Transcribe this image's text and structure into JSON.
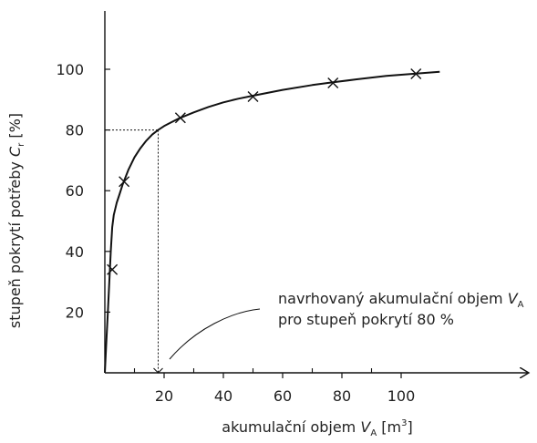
{
  "chart_data": {
    "type": "line",
    "title": "",
    "xlabel": {
      "text": "akumulační objem ",
      "var": "V",
      "sub": "A",
      "unit": " [m",
      "sup": "3",
      "close": "]"
    },
    "ylabel": {
      "text": "stupeň pokrytí potřeby ",
      "var": "C",
      "sub": "r",
      "unit": " [%]"
    },
    "xlim": [
      0,
      115
    ],
    "ylim": [
      0,
      118
    ],
    "x_ticks": [
      20,
      40,
      60,
      80,
      100
    ],
    "x_minor_ticks": [
      10,
      30,
      50,
      70,
      90
    ],
    "y_ticks": [
      20,
      40,
      60,
      80,
      100
    ],
    "grid": false,
    "series": [
      {
        "curve_x": [
          0,
          0.5,
          1,
          1.5,
          2,
          2.5,
          3,
          3.5,
          4,
          5,
          6,
          8,
          10,
          12,
          14,
          16,
          18,
          20,
          22,
          25,
          30,
          35,
          40,
          45,
          50,
          60,
          70,
          77,
          85,
          95,
          105,
          113
        ],
        "curve_y": [
          0,
          10,
          20,
          30,
          40,
          48,
          52,
          54,
          56,
          59,
          62,
          67,
          71,
          74,
          76.5,
          78.5,
          80,
          81.3,
          82.3,
          83.8,
          85.8,
          87.6,
          89.1,
          90.3,
          91.3,
          93.2,
          94.8,
          95.7,
          96.7,
          97.8,
          98.6,
          99.2
        ],
        "markers": [
          {
            "x": 2.5,
            "y": 34
          },
          {
            "x": 6.5,
            "y": 63
          },
          {
            "x": 25.5,
            "y": 84
          },
          {
            "x": 50,
            "y": 91
          },
          {
            "x": 77,
            "y": 95.5
          },
          {
            "x": 105,
            "y": 98.5
          }
        ]
      }
    ],
    "design_point": {
      "x": 18,
      "y": 80
    },
    "annotation": {
      "line1": "navrhovaný akumulační objem ",
      "line1_var": "V",
      "line1_sub": "A",
      "line2": "pro stupeň pokrytí 80 %"
    }
  }
}
